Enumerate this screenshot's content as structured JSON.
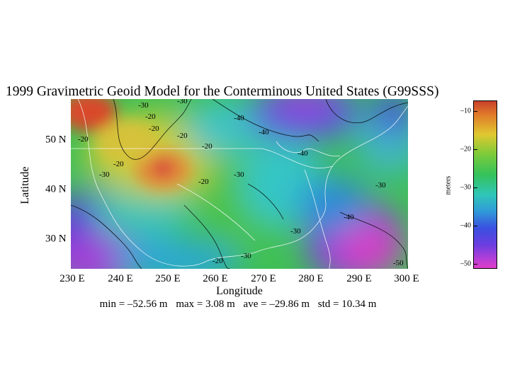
{
  "title": "1999 Gravimetric Geoid Model for the Conterminous United States (G99SSS)",
  "axes": {
    "ylabel": "Latitude",
    "xlabel": "Longitude",
    "yticks": [
      "50 N",
      "40 N",
      "30 N"
    ],
    "xticks": [
      "230 E",
      "240 E",
      "250 E",
      "260 E",
      "270 E",
      "280 E",
      "290 E",
      "300 E"
    ]
  },
  "stats": {
    "min": "min = –52.56 m",
    "max": "max = 3.08 m",
    "ave": "ave = –29.86 m",
    "std": "std = 10.34 m"
  },
  "colorbar": {
    "unit": "meters",
    "ticks": [
      "–10",
      "–20",
      "–30",
      "–40",
      "–50"
    ]
  },
  "contour_labels": [
    "-30",
    "-20",
    "-20",
    "-20",
    "-20",
    "-30",
    "-40",
    "-40",
    "-20",
    "-30",
    "-30",
    "-20",
    "-20",
    "-20",
    "-30",
    "-30",
    "-30",
    "-40",
    "-40",
    "-50"
  ]
}
